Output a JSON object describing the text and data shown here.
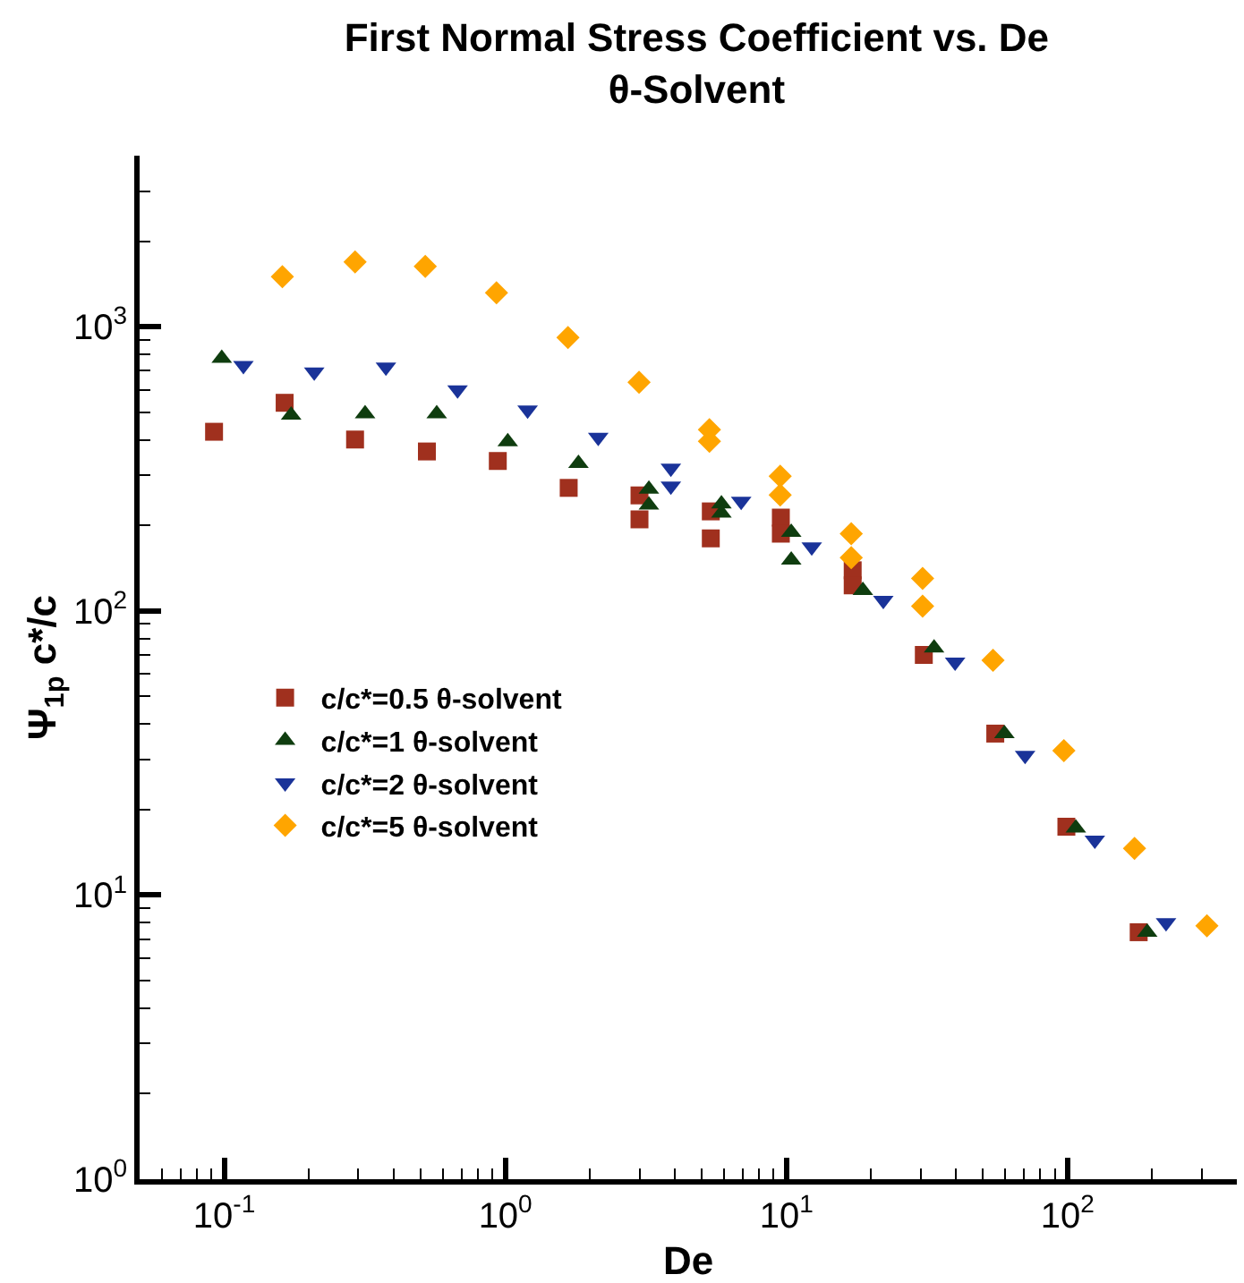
{
  "chart_data": {
    "type": "scatter",
    "title": "First Normal Stress Coefficient vs. De",
    "subtitle": "θ-Solvent",
    "xlabel": "De",
    "ylabel": "Ψ$_{1p}$ c*/c",
    "log": "xy",
    "grid": false,
    "legend": "center left",
    "xlim": [
      0.05,
      400
    ],
    "xticks": [
      {
        "value": 0.1,
        "label": "10$^{-1}$"
      },
      {
        "value": 1,
        "label": "10$^{0}$"
      },
      {
        "value": 10,
        "label": "10$^{1}$"
      },
      {
        "value": 100,
        "label": "10$^{2}$"
      }
    ],
    "ylim": [
      1,
      4000
    ],
    "yticks": [
      {
        "value": 1,
        "label": "10$^{0}$"
      },
      {
        "value": 10,
        "label": "10$^{1}$"
      },
      {
        "value": 100,
        "label": "10$^{2}$"
      },
      {
        "value": 1000,
        "label": "10$^{3}$"
      }
    ],
    "series": [
      {
        "name": "c/c*=0.5 θ-solvent",
        "color": "#a0301e",
        "marker": "square",
        "x": [
          0.092,
          0.164,
          0.292,
          0.526,
          0.94,
          1.68,
          3.0,
          3.0,
          5.38,
          5.38,
          9.55,
          9.55,
          17.2,
          17.2,
          30.8,
          55.3,
          99,
          179
        ],
        "values": [
          427,
          540,
          401,
          364,
          337,
          271,
          255,
          210,
          224,
          180,
          213,
          187,
          139,
          123,
          70,
          37,
          17.4,
          7.4
        ]
      },
      {
        "name": "c/c*=1 θ-solvent",
        "color": "#0f3d0f",
        "marker": "triangle",
        "x": [
          0.098,
          0.173,
          0.317,
          0.57,
          1.02,
          1.82,
          3.24,
          3.24,
          5.87,
          5.87,
          10.4,
          10.4,
          18.7,
          33.5,
          59.6,
          107,
          192
        ],
        "values": [
          774,
          489,
          494,
          494,
          394,
          330,
          268,
          236,
          238,
          221,
          189,
          151,
          118,
          74,
          37,
          17.2,
          7.4
        ]
      },
      {
        "name": "c/c*=2 θ-solvent",
        "color": "#1a3399",
        "marker": "triangle-down",
        "x": [
          0.117,
          0.209,
          0.376,
          0.676,
          1.2,
          2.14,
          3.88,
          3.88,
          6.9,
          12.3,
          22.1,
          39.8,
          70.6,
          125,
          224
        ],
        "values": [
          731,
          693,
          721,
          600,
          509,
          408,
          318,
          275,
          243,
          168,
          109,
          66,
          31,
          15.6,
          8.0
        ]
      },
      {
        "name": "c/c*=5 θ-solvent",
        "color": "#ffa500",
        "marker": "diamond",
        "x": [
          0.161,
          0.292,
          0.519,
          0.93,
          1.67,
          2.99,
          5.32,
          5.32,
          9.5,
          9.5,
          17.0,
          17.0,
          30.5,
          30.5,
          54.3,
          97,
          173,
          313
        ],
        "values": [
          1500,
          1690,
          1630,
          1316,
          917,
          638,
          434,
          395,
          298,
          256,
          187,
          154,
          130,
          104,
          67,
          32.2,
          14.6,
          7.8
        ]
      }
    ]
  }
}
